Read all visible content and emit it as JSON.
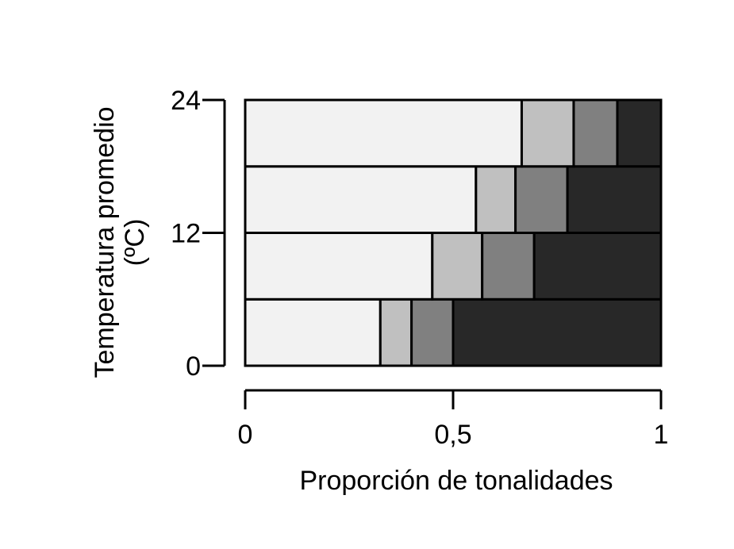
{
  "chart_data": {
    "type": "bar",
    "orientation": "horizontal",
    "stacked": true,
    "normalized": true,
    "xlabel": "Proporción de tonalidades",
    "ylabel_line1": "Temperatura promedio",
    "ylabel_line2": "(ºC)",
    "xlim": [
      0,
      1
    ],
    "ylim": [
      0,
      24
    ],
    "x_ticks": [
      {
        "value": 0,
        "label": "0"
      },
      {
        "value": 0.5,
        "label": "0,5"
      },
      {
        "value": 1,
        "label": "1"
      }
    ],
    "y_ticks": [
      {
        "value": 0,
        "label": "0"
      },
      {
        "value": 12,
        "label": "12"
      },
      {
        "value": 24,
        "label": "24"
      }
    ],
    "grid": false,
    "legend": "none",
    "segment_colors": [
      "#f2f2f2",
      "#c0c0c0",
      "#808080",
      "#282828"
    ],
    "bars": [
      {
        "y_from": 0,
        "y_to": 6,
        "proportions": [
          0.325,
          0.075,
          0.1,
          0.5
        ]
      },
      {
        "y_from": 6,
        "y_to": 12,
        "proportions": [
          0.45,
          0.12,
          0.125,
          0.305
        ]
      },
      {
        "y_from": 12,
        "y_to": 18,
        "proportions": [
          0.555,
          0.095,
          0.125,
          0.225
        ]
      },
      {
        "y_from": 18,
        "y_to": 24,
        "proportions": [
          0.665,
          0.125,
          0.105,
          0.105
        ]
      }
    ]
  }
}
